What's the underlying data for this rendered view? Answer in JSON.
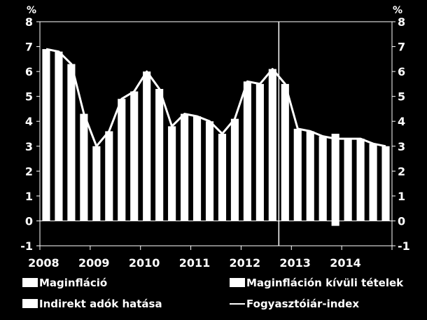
{
  "chart_data": {
    "type": "bar",
    "title": "",
    "unit_left": "%",
    "unit_right": "%",
    "ylim": [
      -1,
      8
    ],
    "yticks": [
      "-1",
      "0",
      "1",
      "2",
      "3",
      "4",
      "5",
      "6",
      "7",
      "8"
    ],
    "xlabels": [
      "2008",
      "2009",
      "2010",
      "2011",
      "2012",
      "2013",
      "2014"
    ],
    "quarters": [
      "2008Q1",
      "2008Q2",
      "2008Q3",
      "2008Q4",
      "2009Q1",
      "2009Q2",
      "2009Q3",
      "2009Q4",
      "2010Q1",
      "2010Q2",
      "2010Q3",
      "2010Q4",
      "2011Q1",
      "2011Q2",
      "2011Q3",
      "2011Q4",
      "2012Q1",
      "2012Q2",
      "2012Q3",
      "2012Q4",
      "2013Q1",
      "2013Q2",
      "2013Q3",
      "2013Q4",
      "2014Q1",
      "2014Q2",
      "2014Q3",
      "2014Q4"
    ],
    "grid": false,
    "legend_position": "bottom",
    "series": [
      {
        "name": "Maginfláció",
        "type": "bar",
        "color": "#ffffff",
        "values": [
          6.9,
          6.8,
          6.3,
          4.3,
          3.0,
          3.6,
          4.9,
          5.2,
          6.0,
          5.3,
          3.8,
          4.3,
          4.2,
          4.0,
          3.5,
          4.1,
          5.6,
          5.5,
          6.1,
          5.5,
          3.7,
          3.6,
          3.4,
          3.5,
          3.3,
          3.3,
          3.1,
          3.0
        ]
      },
      {
        "name": "Maginfláción kívüli tételek",
        "type": "bar",
        "color": "#ffffff",
        "values": [
          0,
          0,
          0,
          0,
          0,
          0,
          0,
          0,
          0,
          0,
          0,
          0,
          0,
          0,
          0,
          0,
          0,
          0,
          0,
          0,
          0,
          0,
          0,
          -0.2,
          0,
          0,
          0,
          0
        ]
      },
      {
        "name": "Indirekt adók hatása",
        "type": "bar",
        "color": "#ffffff",
        "values": [
          0,
          0,
          0,
          0,
          0,
          0,
          0,
          0,
          0,
          0,
          0,
          0,
          0,
          0,
          0,
          0,
          0,
          0,
          0,
          0,
          0,
          0,
          0,
          0,
          0,
          0,
          0,
          0
        ]
      },
      {
        "name": "Fogyasztóiár-index",
        "type": "line",
        "color": "#ffffff",
        "values": [
          6.9,
          6.8,
          6.3,
          4.3,
          3.0,
          3.6,
          4.9,
          5.2,
          6.0,
          5.3,
          3.8,
          4.3,
          4.2,
          4.0,
          3.5,
          4.1,
          5.6,
          5.5,
          6.1,
          5.5,
          3.7,
          3.6,
          3.4,
          3.3,
          3.3,
          3.3,
          3.1,
          3.0
        ]
      }
    ],
    "vertical_marker_after_quarter": "2012Q3",
    "legend": [
      {
        "label": "Maginfláció",
        "symbol": "bar"
      },
      {
        "label": "Maginfláción kívüli tételek",
        "symbol": "bar"
      },
      {
        "label": "Indirekt adók hatása",
        "symbol": "bar"
      },
      {
        "label": "Fogyasztóiár-index",
        "symbol": "line"
      }
    ]
  }
}
